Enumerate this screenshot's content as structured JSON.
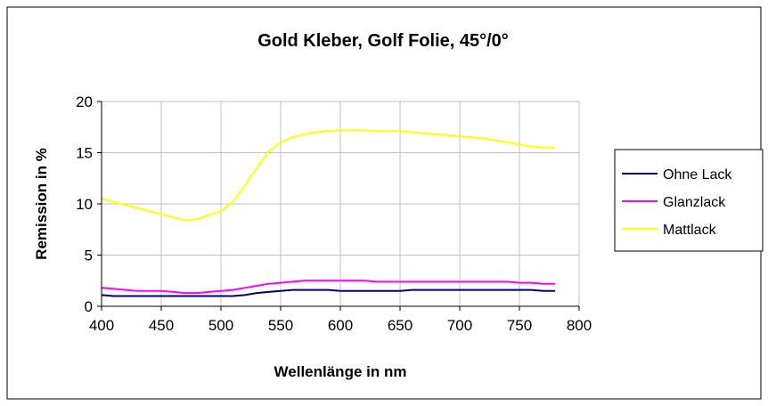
{
  "chart_data": {
    "type": "line",
    "title": "Gold Kleber, Golf Folie, 45°/0°",
    "xlabel": "Wellenlänge in nm",
    "ylabel": "Remission in %",
    "xlim": [
      400,
      800
    ],
    "ylim": [
      0,
      20
    ],
    "xticks": [
      400,
      450,
      500,
      550,
      600,
      650,
      700,
      750,
      800
    ],
    "yticks": [
      0,
      5,
      10,
      15,
      20
    ],
    "grid": true,
    "legend": "right",
    "series": [
      {
        "name": "Ohne Lack",
        "color": "#000080",
        "x": [
          400,
          410,
          420,
          430,
          440,
          450,
          460,
          470,
          480,
          490,
          500,
          510,
          520,
          530,
          540,
          550,
          560,
          570,
          580,
          590,
          600,
          610,
          620,
          630,
          640,
          650,
          660,
          670,
          680,
          690,
          700,
          710,
          720,
          730,
          740,
          750,
          760,
          770,
          780
        ],
        "y": [
          1.1,
          1.0,
          1.0,
          1.0,
          1.0,
          1.0,
          1.0,
          1.0,
          1.0,
          1.0,
          1.0,
          1.0,
          1.1,
          1.3,
          1.4,
          1.5,
          1.6,
          1.6,
          1.6,
          1.6,
          1.5,
          1.5,
          1.5,
          1.5,
          1.5,
          1.5,
          1.6,
          1.6,
          1.6,
          1.6,
          1.6,
          1.6,
          1.6,
          1.6,
          1.6,
          1.6,
          1.6,
          1.5,
          1.5
        ]
      },
      {
        "name": "Glanzlack",
        "color": "#ff00ff",
        "x": [
          400,
          410,
          420,
          430,
          440,
          450,
          460,
          470,
          480,
          490,
          500,
          510,
          520,
          530,
          540,
          550,
          560,
          570,
          580,
          590,
          600,
          610,
          620,
          630,
          640,
          650,
          660,
          670,
          680,
          690,
          700,
          710,
          720,
          730,
          740,
          750,
          760,
          770,
          780
        ],
        "y": [
          1.8,
          1.7,
          1.6,
          1.5,
          1.5,
          1.5,
          1.4,
          1.3,
          1.3,
          1.4,
          1.5,
          1.6,
          1.8,
          2.0,
          2.2,
          2.3,
          2.4,
          2.5,
          2.5,
          2.5,
          2.5,
          2.5,
          2.5,
          2.4,
          2.4,
          2.4,
          2.4,
          2.4,
          2.4,
          2.4,
          2.4,
          2.4,
          2.4,
          2.4,
          2.4,
          2.3,
          2.3,
          2.2,
          2.2
        ]
      },
      {
        "name": "Mattlack",
        "color": "#ffff00",
        "x": [
          400,
          410,
          420,
          430,
          440,
          450,
          460,
          470,
          480,
          490,
          500,
          510,
          520,
          530,
          540,
          550,
          560,
          570,
          580,
          590,
          600,
          610,
          620,
          630,
          640,
          650,
          660,
          670,
          680,
          690,
          700,
          710,
          720,
          730,
          740,
          750,
          760,
          770,
          780
        ],
        "y": [
          10.5,
          10.2,
          9.9,
          9.6,
          9.3,
          9.0,
          8.7,
          8.4,
          8.5,
          8.9,
          9.3,
          10.2,
          11.8,
          13.5,
          15.1,
          16.0,
          16.5,
          16.8,
          17.0,
          17.1,
          17.2,
          17.2,
          17.2,
          17.1,
          17.1,
          17.1,
          17.0,
          16.9,
          16.8,
          16.7,
          16.6,
          16.5,
          16.4,
          16.2,
          16.0,
          15.8,
          15.6,
          15.5,
          15.5
        ]
      }
    ]
  }
}
